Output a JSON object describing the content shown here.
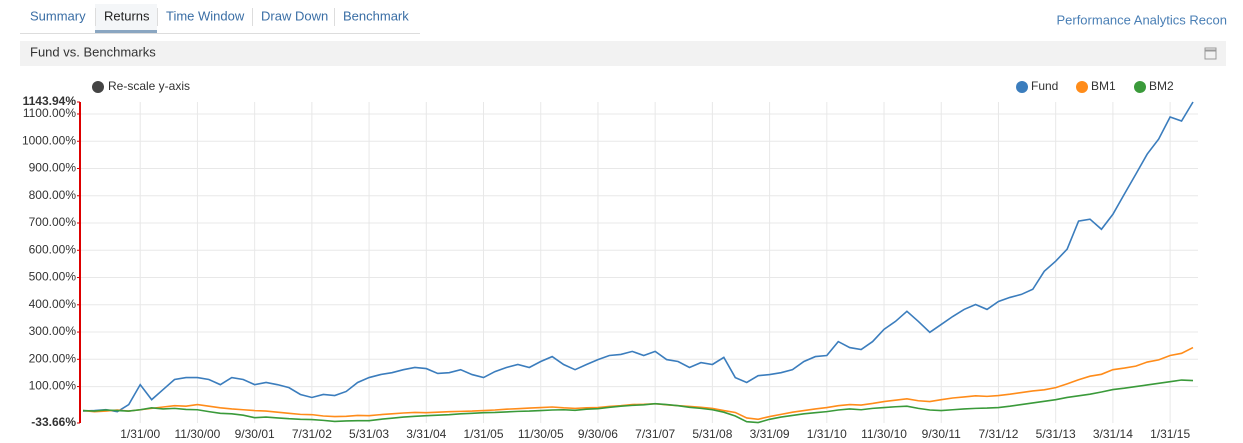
{
  "tabs": [
    "Summary",
    "Returns",
    "Time Window",
    "Draw Down",
    "Benchmark"
  ],
  "app_title": "Performance Analytics Recon",
  "panel_title": "Fund vs. Benchmarks",
  "rescale_label": "Re-scale y-axis",
  "chart_data": {
    "type": "line",
    "categories": [
      null,
      null,
      null,
      null,
      null,
      "1/31/00",
      null,
      null,
      null,
      null,
      "11/30/00",
      null,
      null,
      null,
      null,
      "9/30/01",
      null,
      null,
      null,
      null,
      "7/31/02",
      null,
      null,
      null,
      null,
      "5/31/03",
      null,
      null,
      null,
      null,
      "3/31/04",
      null,
      null,
      null,
      null,
      "1/31/05",
      null,
      null,
      null,
      null,
      "11/30/05",
      null,
      null,
      null,
      null,
      "9/30/06",
      null,
      null,
      null,
      null,
      "7/31/07",
      null,
      null,
      null,
      null,
      "5/31/08",
      null,
      null,
      null,
      null,
      "3/31/09",
      null,
      null,
      null,
      null,
      "1/31/10",
      null,
      null,
      null,
      null,
      "11/30/10",
      null,
      null,
      null,
      null,
      "9/30/11",
      null,
      null,
      null,
      null,
      "7/31/12",
      null,
      null,
      null,
      null,
      "5/31/13",
      null,
      null,
      null,
      null,
      "3/31/14",
      null,
      null,
      null,
      null,
      "1/31/15",
      null,
      null
    ],
    "series": [
      {
        "name": "Fund",
        "color": "#3b7dbd",
        "values": [
          10,
          12,
          15,
          8,
          34,
          107,
          52,
          89,
          126,
          133,
          133,
          126,
          107,
          133,
          126,
          107,
          115,
          107,
          96,
          71,
          60,
          71,
          67,
          82,
          115,
          133,
          144,
          151,
          162,
          170,
          166,
          148,
          151,
          162,
          144,
          133,
          155,
          170,
          181,
          170,
          192,
          210,
          181,
          162,
          181,
          199,
          214,
          218,
          229,
          214,
          229,
          199,
          192,
          170,
          188,
          181,
          207,
          133,
          115,
          140,
          144,
          151,
          162,
          192,
          210,
          214,
          265,
          243,
          236,
          265,
          310,
          339,
          376,
          339,
          299,
          328,
          357,
          383,
          401,
          383,
          412,
          427,
          438,
          457,
          523,
          560,
          604,
          707,
          714,
          677,
          732,
          806,
          879,
          953,
          1008,
          1089,
          1074,
          1143.94
        ]
      },
      {
        "name": "BM1",
        "color": "#ff8c1a",
        "values": [
          12,
          8,
          10,
          14,
          10,
          15,
          20,
          25,
          30,
          28,
          34,
          28,
          22,
          18,
          15,
          12,
          10,
          6,
          2,
          -2,
          -3,
          -8,
          -10,
          -9,
          -6,
          -7,
          -3,
          0,
          3,
          5,
          4,
          6,
          8,
          9,
          10,
          12,
          14,
          17,
          19,
          21,
          23,
          25,
          22,
          20,
          22,
          23,
          27,
          30,
          34,
          35,
          37,
          33,
          30,
          27,
          24,
          20,
          12,
          5,
          -15,
          -20,
          -10,
          -2,
          6,
          12,
          18,
          23,
          30,
          34,
          32,
          38,
          45,
          50,
          55,
          48,
          45,
          52,
          58,
          62,
          66,
          64,
          67,
          72,
          78,
          84,
          88,
          96,
          110,
          125,
          138,
          145,
          162,
          168,
          175,
          190,
          198,
          214,
          222,
          243
        ]
      },
      {
        "name": "BM2",
        "color": "#3a9a3a",
        "values": [
          12,
          10,
          14,
          12,
          10,
          15,
          22,
          18,
          20,
          16,
          15,
          8,
          2,
          0,
          -5,
          -14,
          -12,
          -15,
          -18,
          -20,
          -21,
          -24,
          -28,
          -26,
          -25,
          -25,
          -20,
          -16,
          -12,
          -9,
          -7,
          -5,
          -3,
          0,
          2,
          4,
          5,
          7,
          9,
          10,
          12,
          14,
          15,
          13,
          17,
          19,
          24,
          28,
          31,
          33,
          37,
          34,
          30,
          24,
          20,
          15,
          6,
          -8,
          -29,
          -32,
          -20,
          -12,
          -6,
          0,
          4,
          8,
          14,
          18,
          15,
          20,
          23,
          26,
          28,
          20,
          14,
          12,
          15,
          18,
          20,
          21,
          23,
          28,
          34,
          40,
          46,
          52,
          60,
          66,
          72,
          80,
          89,
          94,
          100,
          106,
          112,
          118,
          124,
          122
        ]
      }
    ],
    "ylim": [
      -33.66,
      1143.94
    ],
    "yticks": [
      {
        "value": -33.66,
        "label": "-33.66%"
      },
      {
        "value": 100,
        "label": "100.00%"
      },
      {
        "value": 200,
        "label": "200.00%"
      },
      {
        "value": 300,
        "label": "300.00%"
      },
      {
        "value": 400,
        "label": "400.00%"
      },
      {
        "value": 500,
        "label": "500.00%"
      },
      {
        "value": 600,
        "label": "600.00%"
      },
      {
        "value": 700,
        "label": "700.00%"
      },
      {
        "value": 800,
        "label": "800.00%"
      },
      {
        "value": 900,
        "label": "900.00%"
      },
      {
        "value": 1000,
        "label": "1000.00%"
      },
      {
        "value": 1100,
        "label": "1100.00%"
      },
      {
        "value": 1143.94,
        "label": "1143.94%"
      }
    ],
    "grid": true
  }
}
